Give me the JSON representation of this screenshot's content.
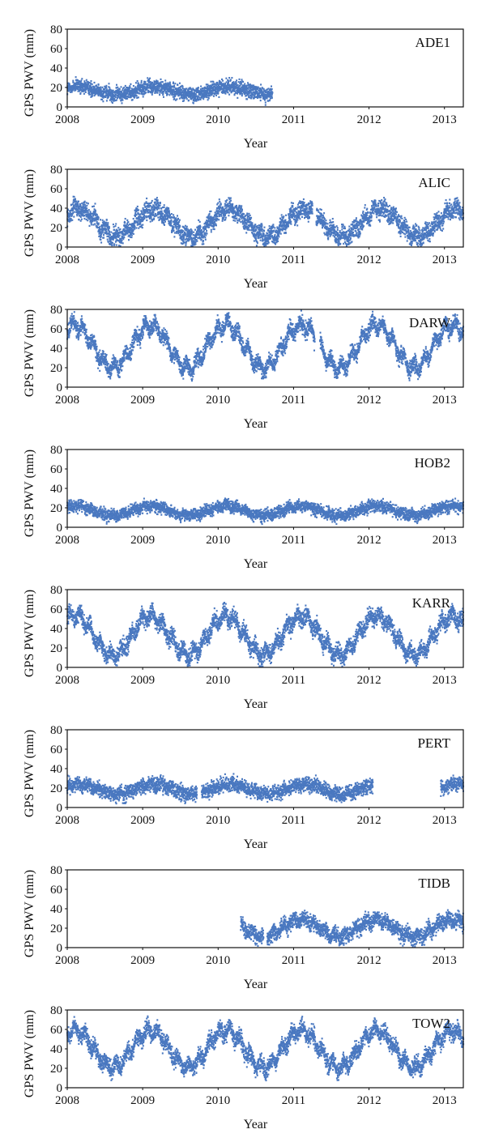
{
  "colors": {
    "series": "#4a78c0",
    "frame": "#111111",
    "background": "#ffffff"
  },
  "chart_data": [
    {
      "type": "scatter",
      "title": "ADE1",
      "xlabel": "Year",
      "ylabel": "GPS PWV (mm)",
      "xlim": [
        2008,
        2013.25
      ],
      "ylim": [
        0,
        80
      ],
      "xticks": [
        "2008",
        "2009",
        "2010",
        "2011",
        "2012",
        "2013"
      ],
      "yticks": [
        "0",
        "20",
        "40",
        "60",
        "80"
      ],
      "segments": [
        [
          2008.0,
          2010.72
        ]
      ],
      "base": 17,
      "amp": 4,
      "peak": 2008.15,
      "noise": 11,
      "grid": false,
      "legend": "none"
    },
    {
      "type": "scatter",
      "title": "ALIC",
      "xlabel": "Year",
      "ylabel": "GPS PWV (mm)",
      "xlim": [
        2008,
        2013.25
      ],
      "ylim": [
        0,
        80
      ],
      "xticks": [
        "2008",
        "2009",
        "2010",
        "2011",
        "2012",
        "2013"
      ],
      "yticks": [
        "0",
        "20",
        "40",
        "60",
        "80"
      ],
      "segments": [
        [
          2008.0,
          2011.25
        ],
        [
          2011.3,
          2013.25
        ]
      ],
      "base": 25,
      "amp": 14,
      "peak": 2008.15,
      "noise": 14,
      "grid": false,
      "legend": "none"
    },
    {
      "type": "scatter",
      "title": "DARW",
      "xlabel": "Year",
      "ylabel": "GPS PWV (mm)",
      "xlim": [
        2008,
        2013.25
      ],
      "ylim": [
        0,
        80
      ],
      "xticks": [
        "2008",
        "2009",
        "2010",
        "2011",
        "2012",
        "2013"
      ],
      "yticks": [
        "0",
        "20",
        "40",
        "60",
        "80"
      ],
      "segments": [
        [
          2008.0,
          2011.28
        ],
        [
          2011.35,
          2013.25
        ]
      ],
      "base": 42,
      "amp": 22,
      "peak": 2008.1,
      "noise": 12,
      "grid": false,
      "legend": "top-right"
    },
    {
      "type": "scatter",
      "title": "HOB2",
      "xlabel": "Year",
      "ylabel": "GPS PWV (mm)",
      "xlim": [
        2008,
        2013.25
      ],
      "ylim": [
        0,
        80
      ],
      "xticks": [
        "2008",
        "2009",
        "2010",
        "2011",
        "2012",
        "2013"
      ],
      "yticks": [
        "0",
        "20",
        "40",
        "60",
        "80"
      ],
      "segments": [
        [
          2008.0,
          2013.25
        ]
      ],
      "base": 17,
      "amp": 5,
      "peak": 2008.1,
      "noise": 9,
      "grid": false,
      "legend": "none"
    },
    {
      "type": "scatter",
      "title": "KARR",
      "xlabel": "Year",
      "ylabel": "GPS PWV (mm)",
      "xlim": [
        2008,
        2013.25
      ],
      "ylim": [
        0,
        80
      ],
      "xticks": [
        "2008",
        "2009",
        "2010",
        "2011",
        "2012",
        "2013"
      ],
      "yticks": [
        "0",
        "20",
        "40",
        "60",
        "80"
      ],
      "segments": [
        [
          2008.0,
          2013.25
        ]
      ],
      "base": 33,
      "amp": 20,
      "peak": 2008.1,
      "noise": 13,
      "grid": false,
      "legend": "none"
    },
    {
      "type": "scatter",
      "title": "PERT",
      "xlabel": "Year",
      "ylabel": "GPS PWV (mm)",
      "xlim": [
        2008,
        2013.25
      ],
      "ylim": [
        0,
        80
      ],
      "xticks": [
        "2008",
        "2009",
        "2010",
        "2011",
        "2012",
        "2013"
      ],
      "yticks": [
        "0",
        "20",
        "40",
        "60",
        "80"
      ],
      "segments": [
        [
          2008.0,
          2009.72
        ],
        [
          2009.78,
          2012.05
        ],
        [
          2012.95,
          2013.25
        ]
      ],
      "base": 19,
      "amp": 5,
      "peak": 2008.15,
      "noise": 11,
      "grid": false,
      "legend": "none"
    },
    {
      "type": "scatter",
      "title": "TIDB",
      "xlabel": "Year",
      "ylabel": "GPS PWV (mm)",
      "xlim": [
        2008,
        2013.25
      ],
      "ylim": [
        0,
        80
      ],
      "xticks": [
        "2008",
        "2009",
        "2010",
        "2011",
        "2012",
        "2013"
      ],
      "yticks": [
        "0",
        "20",
        "40",
        "60",
        "80"
      ],
      "segments": [
        [
          2010.3,
          2010.6
        ],
        [
          2010.65,
          2013.25
        ]
      ],
      "base": 20,
      "amp": 9,
      "peak": 2008.1,
      "noise": 12,
      "grid": false,
      "legend": "none"
    },
    {
      "type": "scatter",
      "title": "TOW2",
      "xlabel": "Year",
      "ylabel": "GPS PWV (mm)",
      "xlim": [
        2008,
        2013.25
      ],
      "ylim": [
        0,
        80
      ],
      "xticks": [
        "2008",
        "2009",
        "2010",
        "2011",
        "2012",
        "2013"
      ],
      "yticks": [
        "0",
        "20",
        "40",
        "60",
        "80"
      ],
      "segments": [
        [
          2008.0,
          2013.25
        ]
      ],
      "base": 40,
      "amp": 19,
      "peak": 2008.1,
      "noise": 13,
      "grid": false,
      "legend": "top-right"
    }
  ]
}
